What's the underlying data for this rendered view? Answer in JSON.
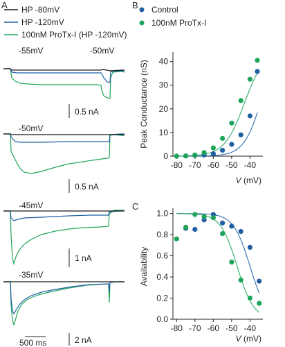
{
  "panels": {
    "a": "A",
    "b": "B",
    "c": "C"
  },
  "colors": {
    "hp80": "#1a1a1a",
    "hp120": "#1f5fa3",
    "protx": "#1fa55a",
    "control_dot": "#1f5fa3",
    "protx_dot": "#1fa55a"
  },
  "traces": {
    "legend": [
      "HP -80mV",
      "HP -120mV",
      "100nM ProTx-I (HP -120mV)"
    ],
    "sweeps": [
      {
        "step_label": "-55mV",
        "step2_label": "-50mV",
        "scale_label": "0.5 nA"
      },
      {
        "step_label": "-50mV",
        "scale_label": "0.5 nA"
      },
      {
        "step_label": "-45mV",
        "scale_label": "1 nA"
      },
      {
        "step_label": "-35mV",
        "scale_label": "2 nA"
      }
    ],
    "time_scale_label": "500 ms"
  },
  "chart_data": [
    {
      "type": "scatter",
      "title": "",
      "xlabel_italic": "V",
      "xlabel_unit": " (mV)",
      "ylabel": "Peak Conductance (nS)",
      "xlim": [
        -82,
        -33
      ],
      "ylim": [
        0,
        44
      ],
      "xticks": [
        -80,
        -70,
        -60,
        -50,
        -40
      ],
      "yticks": [
        0,
        10,
        20,
        30,
        40
      ],
      "legend": "top-left",
      "series": [
        {
          "name": "Control",
          "color": "#1f5fa3",
          "x": [
            -80,
            -75,
            -70,
            -65,
            -60,
            -55,
            -50,
            -45,
            -40,
            -36
          ],
          "y": [
            0,
            0.1,
            0.3,
            0.5,
            1.0,
            2.5,
            5.0,
            9.0,
            17.0,
            35.8
          ]
        },
        {
          "name": "100nM ProTx-I",
          "color": "#1fa55a",
          "x": [
            -80,
            -75,
            -70,
            -65,
            -60,
            -55,
            -50,
            -45,
            -40,
            -36
          ],
          "y": [
            0,
            0.1,
            0.5,
            1.5,
            3.5,
            7.5,
            14.0,
            23.5,
            32.5,
            40.5
          ]
        }
      ]
    },
    {
      "type": "scatter",
      "title": "",
      "xlabel_italic": "V",
      "xlabel_unit": " (mV)",
      "ylabel": "Availability",
      "xlim": [
        -82,
        -33
      ],
      "ylim": [
        0,
        1.05
      ],
      "xticks": [
        -80,
        -70,
        -60,
        -50,
        -40
      ],
      "yticks": [
        0.0,
        0.2,
        0.4,
        0.6,
        0.8,
        1.0
      ],
      "series": [
        {
          "name": "Control",
          "color": "#1f5fa3",
          "x": [
            -75,
            -70,
            -65,
            -60,
            -55,
            -50,
            -45,
            -40,
            -35
          ],
          "y": [
            0.86,
            0.85,
            0.94,
            0.99,
            0.91,
            0.88,
            0.83,
            0.68,
            0.36
          ]
        },
        {
          "name": "100nM ProTx-I",
          "color": "#1fa55a",
          "x": [
            -80,
            -75,
            -70,
            -65,
            -60,
            -55,
            -50,
            -45,
            -40,
            -35
          ],
          "y": [
            0.76,
            0.87,
            0.99,
            0.97,
            0.96,
            0.81,
            0.54,
            0.37,
            0.2,
            0.15
          ]
        }
      ]
    }
  ]
}
